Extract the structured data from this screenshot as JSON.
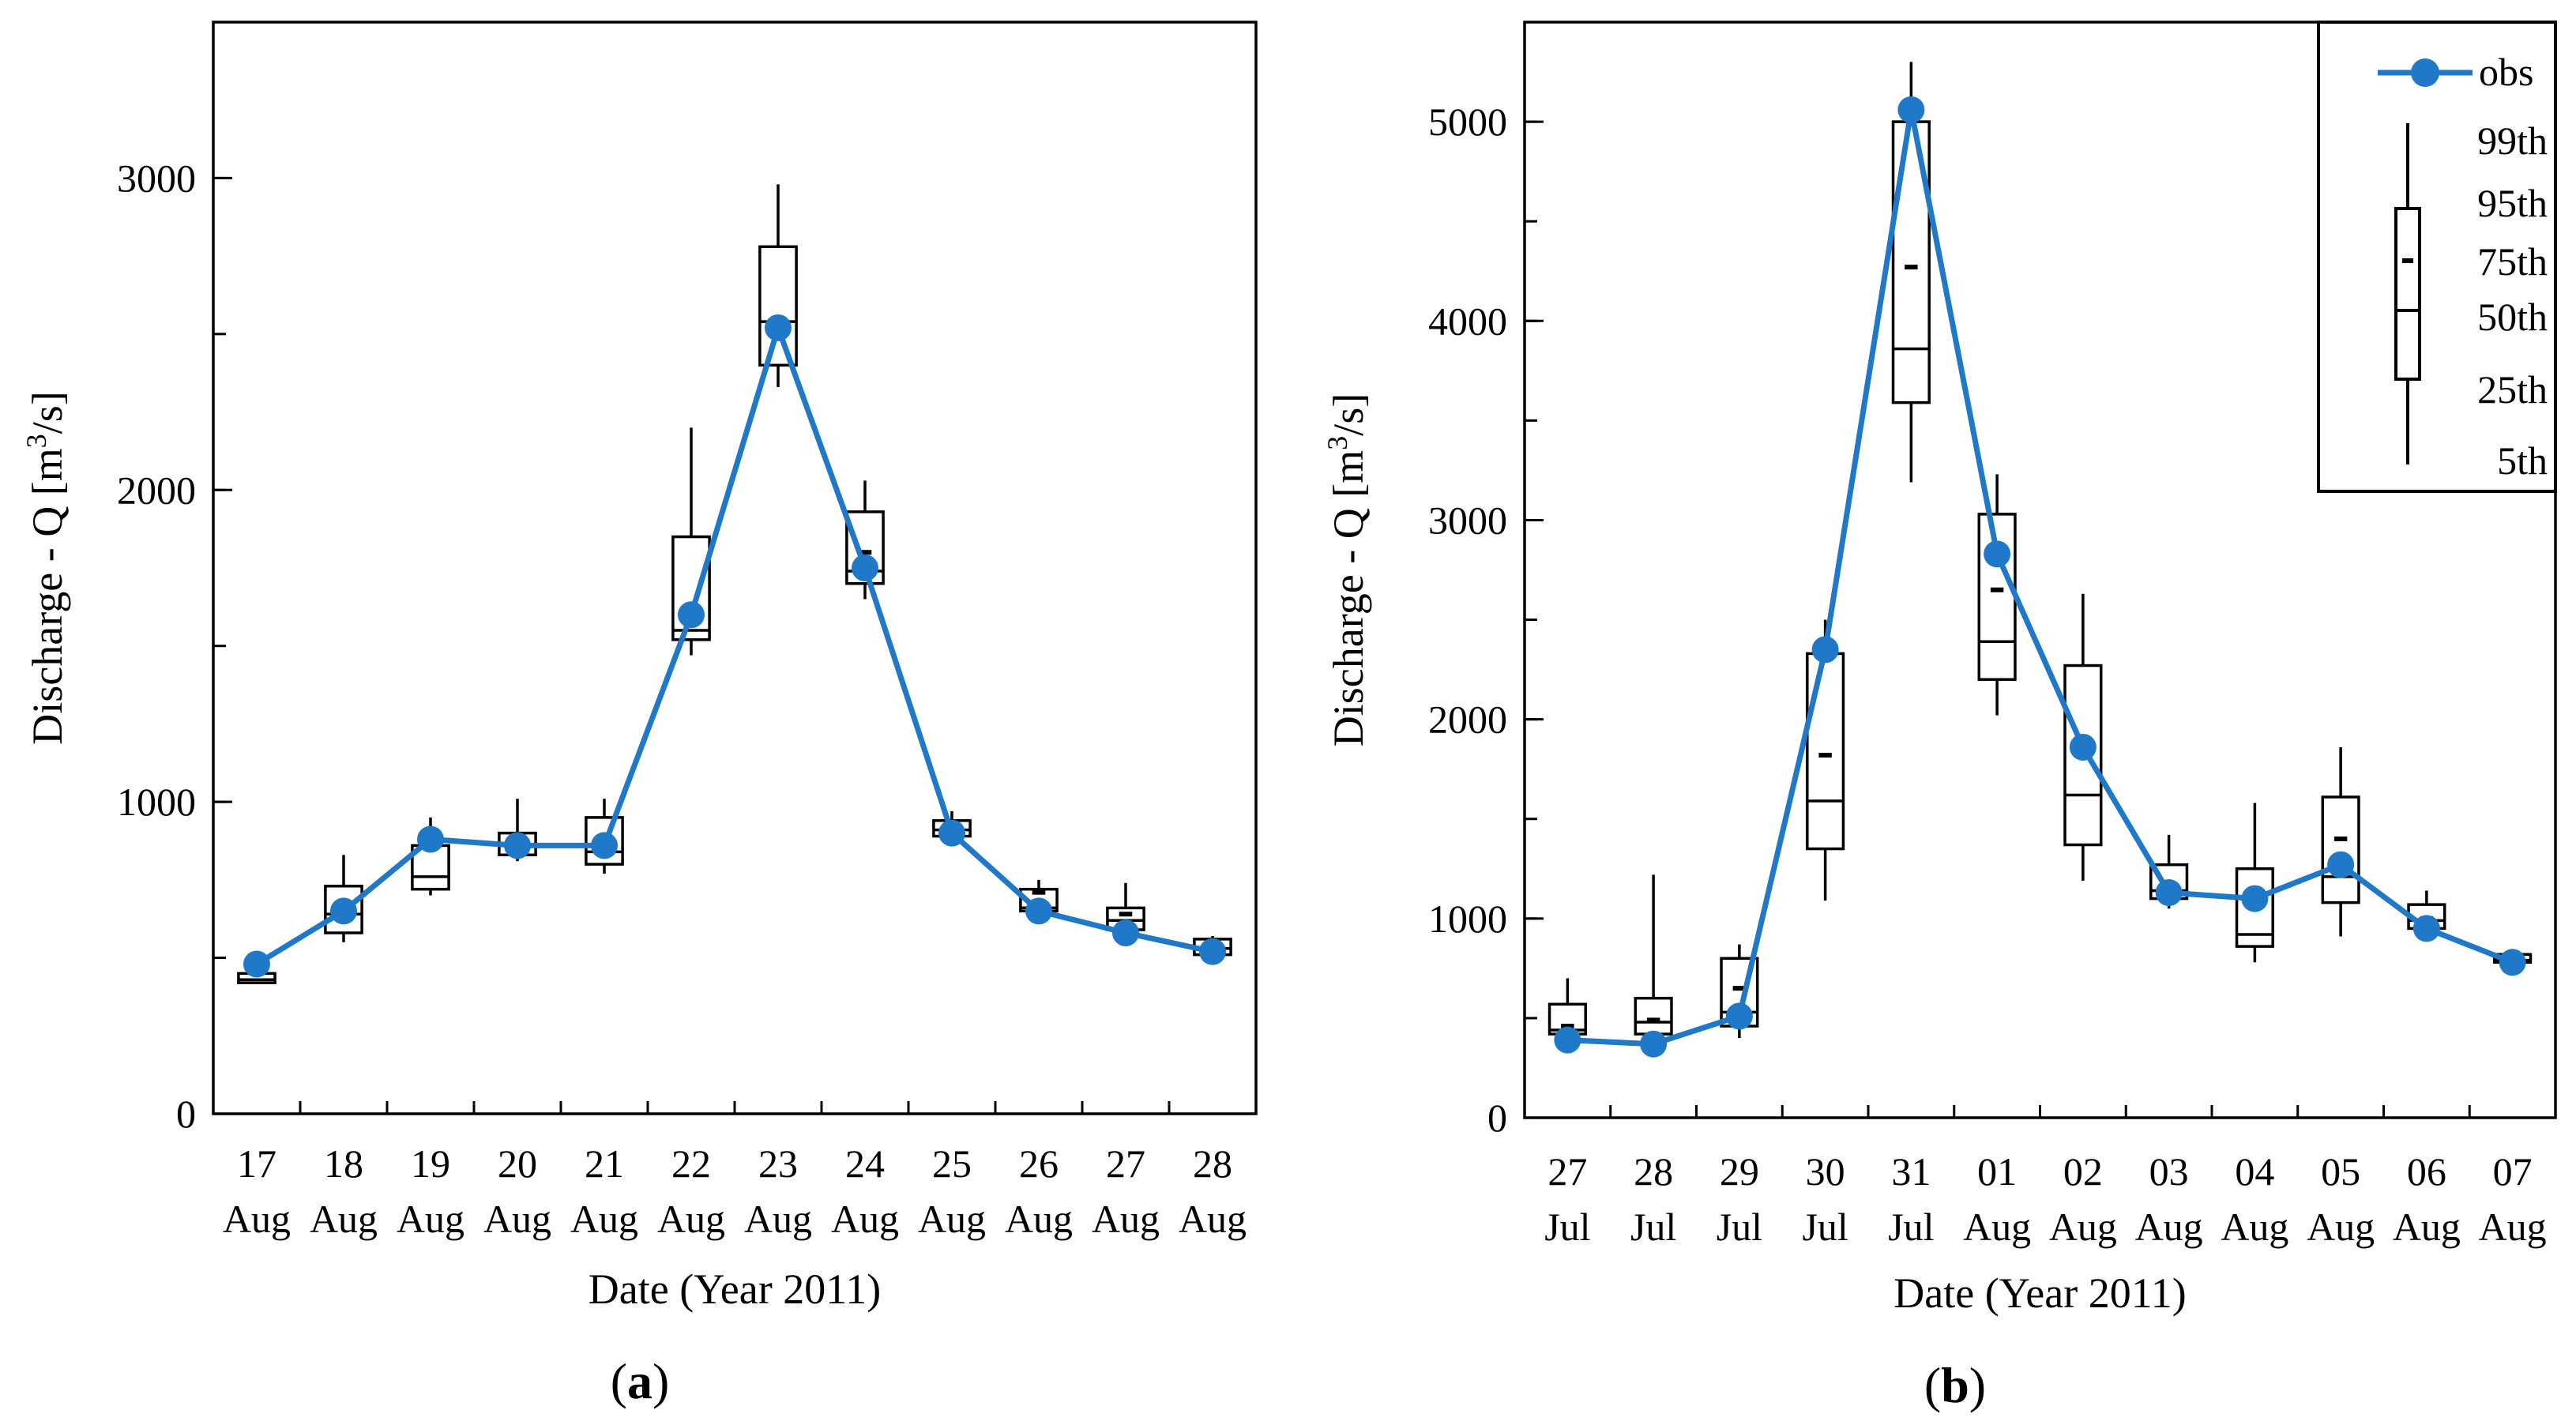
{
  "colors": {
    "obs": "#1f78c8",
    "box": "#000000",
    "background": "#ffffff"
  },
  "chart_data": [
    {
      "type": "box_with_line",
      "panel_label": "(a)",
      "panel_label_letter": "a",
      "ylabel": "Discharge - Q [m³/s]",
      "ylabel_main": "Discharge - Q [m",
      "ylabel_sup": "3",
      "ylabel_end": "/s]",
      "xlabel": "Date  (Year 2011)",
      "ylim": [
        0,
        3500
      ],
      "yticks": [
        0,
        1000,
        2000,
        3000
      ],
      "ytick_labels": [
        "0",
        "1000",
        "2000",
        "3000"
      ],
      "yminor_step": 500,
      "categories": [
        {
          "day": "17",
          "month": "Aug"
        },
        {
          "day": "18",
          "month": "Aug"
        },
        {
          "day": "19",
          "month": "Aug"
        },
        {
          "day": "20",
          "month": "Aug"
        },
        {
          "day": "21",
          "month": "Aug"
        },
        {
          "day": "22",
          "month": "Aug"
        },
        {
          "day": "23",
          "month": "Aug"
        },
        {
          "day": "24",
          "month": "Aug"
        },
        {
          "day": "25",
          "month": "Aug"
        },
        {
          "day": "26",
          "month": "Aug"
        },
        {
          "day": "27",
          "month": "Aug"
        },
        {
          "day": "28",
          "month": "Aug"
        }
      ],
      "obs": [
        480,
        650,
        880,
        860,
        860,
        1600,
        2520,
        1750,
        900,
        650,
        580,
        520
      ],
      "boxes": [
        {
          "p5": 420,
          "p25": 420,
          "p50": 430,
          "p75": 450,
          "p95": 450,
          "p99": 460
        },
        {
          "p5": 550,
          "p25": 580,
          "p50": 640,
          "p75": 650,
          "p95": 730,
          "p99": 830
        },
        {
          "p5": 700,
          "p25": 720,
          "p50": 760,
          "p75": 860,
          "p95": 860,
          "p99": 950
        },
        {
          "p5": 810,
          "p25": 830,
          "p50": 860,
          "p75": 870,
          "p95": 900,
          "p99": 1010
        },
        {
          "p5": 770,
          "p25": 800,
          "p50": 840,
          "p75": 880,
          "p95": 950,
          "p99": 1010
        },
        {
          "p5": 1470,
          "p25": 1520,
          "p50": 1550,
          "p75": 1600,
          "p95": 1850,
          "p99": 2200
        },
        {
          "p5": 2330,
          "p25": 2400,
          "p50": 2540,
          "p75": 2550,
          "p95": 2780,
          "p99": 2980
        },
        {
          "p5": 1650,
          "p25": 1700,
          "p50": 1740,
          "p75": 1800,
          "p95": 1930,
          "p99": 2030
        },
        {
          "p5": 880,
          "p25": 890,
          "p50": 910,
          "p75": 930,
          "p95": 940,
          "p99": 970
        },
        {
          "p5": 630,
          "p25": 650,
          "p50": 660,
          "p75": 710,
          "p95": 720,
          "p99": 750
        },
        {
          "p5": 580,
          "p25": 590,
          "p50": 620,
          "p75": 640,
          "p95": 660,
          "p99": 740
        },
        {
          "p5": 510,
          "p25": 510,
          "p50": 530,
          "p75": 550,
          "p95": 560,
          "p99": 570
        }
      ]
    },
    {
      "type": "box_with_line",
      "panel_label": "(b)",
      "panel_label_letter": "b",
      "ylabel": "Discharge - Q [m³/s]",
      "ylabel_main": "Discharge - Q [m",
      "ylabel_sup": "3",
      "ylabel_end": "/s]",
      "xlabel": "Date  (Year 2011)",
      "ylim": [
        0,
        5500
      ],
      "yticks": [
        0,
        1000,
        2000,
        3000,
        4000,
        5000
      ],
      "ytick_labels": [
        "0",
        "1000",
        "2000",
        "3000",
        "4000",
        "5000"
      ],
      "yminor_step": 500,
      "categories": [
        {
          "day": "27",
          "month": "Jul"
        },
        {
          "day": "28",
          "month": "Jul"
        },
        {
          "day": "29",
          "month": "Jul"
        },
        {
          "day": "30",
          "month": "Jul"
        },
        {
          "day": "31",
          "month": "Jul"
        },
        {
          "day": "01",
          "month": "Aug"
        },
        {
          "day": "02",
          "month": "Aug"
        },
        {
          "day": "03",
          "month": "Aug"
        },
        {
          "day": "04",
          "month": "Aug"
        },
        {
          "day": "05",
          "month": "Aug"
        },
        {
          "day": "06",
          "month": "Aug"
        },
        {
          "day": "07",
          "month": "Aug"
        }
      ],
      "obs": [
        390,
        370,
        510,
        2350,
        5060,
        2830,
        1860,
        1130,
        1100,
        1270,
        950,
        780
      ],
      "boxes": [
        {
          "p5": 400,
          "p25": 420,
          "p50": 440,
          "p75": 460,
          "p95": 570,
          "p99": 700
        },
        {
          "p5": 390,
          "p25": 420,
          "p50": 480,
          "p75": 490,
          "p95": 600,
          "p99": 1220
        },
        {
          "p5": 400,
          "p25": 460,
          "p50": 530,
          "p75": 650,
          "p95": 800,
          "p99": 870
        },
        {
          "p5": 1090,
          "p25": 1350,
          "p50": 1590,
          "p75": 1820,
          "p95": 2330,
          "p99": 2500
        },
        {
          "p5": 3190,
          "p25": 3590,
          "p50": 3860,
          "p75": 4270,
          "p95": 5000,
          "p99": 5300
        },
        {
          "p5": 2020,
          "p25": 2200,
          "p50": 2390,
          "p75": 2650,
          "p95": 3030,
          "p99": 3230
        },
        {
          "p5": 1190,
          "p25": 1370,
          "p50": 1620,
          "p75": 1900,
          "p95": 2270,
          "p99": 2630
        },
        {
          "p5": 1050,
          "p25": 1100,
          "p50": 1140,
          "p75": 1150,
          "p95": 1270,
          "p99": 1420
        },
        {
          "p5": 780,
          "p25": 860,
          "p50": 920,
          "p75": 1060,
          "p95": 1250,
          "p99": 1580
        },
        {
          "p5": 910,
          "p25": 1080,
          "p50": 1210,
          "p75": 1400,
          "p95": 1610,
          "p99": 1860
        },
        {
          "p5": 920,
          "p25": 950,
          "p50": 990,
          "p75": 1000,
          "p95": 1070,
          "p99": 1140
        },
        {
          "p5": 770,
          "p25": 780,
          "p50": 790,
          "p75": 800,
          "p95": 820,
          "p99": 830
        }
      ],
      "legend": {
        "position": "top-right",
        "obs_label": "obs",
        "percentiles": [
          "99th",
          "95th",
          "75th",
          "50th",
          "25th",
          "5th"
        ]
      }
    }
  ]
}
